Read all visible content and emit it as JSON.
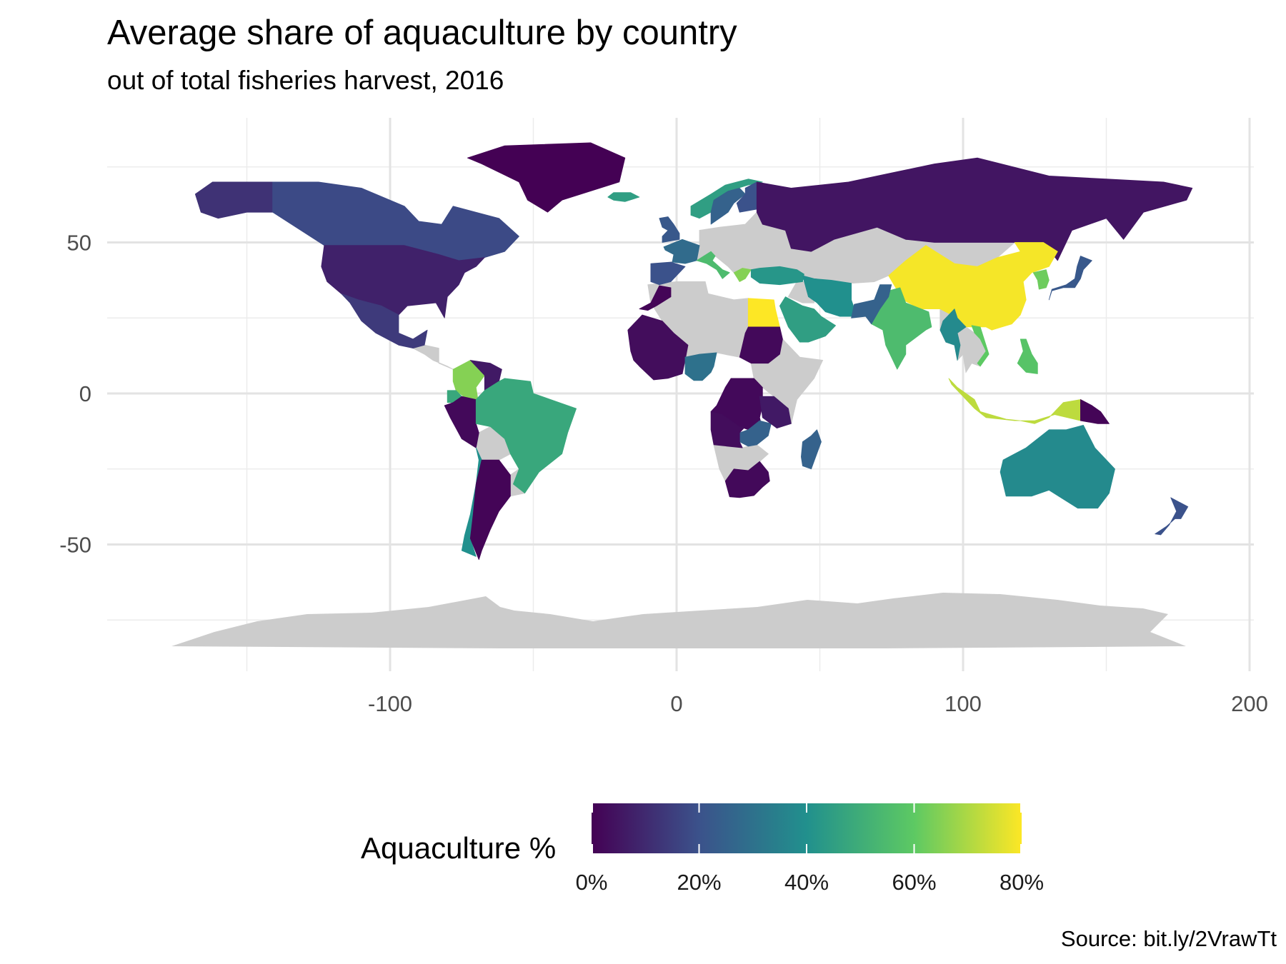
{
  "title": "Average share of aquaculture by country",
  "subtitle": "out of total fisheries harvest, 2016",
  "caption": "Source: bit.ly/2VrawTt",
  "chart_data": {
    "type": "choropleth",
    "x_axis": {
      "ticks": [
        -100,
        0,
        100,
        200
      ],
      "range": [
        -200,
        205
      ],
      "minor_gridlines": [
        -150,
        -50,
        50,
        150
      ]
    },
    "y_axis": {
      "ticks": [
        -50,
        0,
        50
      ],
      "range": [
        -90,
        90
      ],
      "minor_gridlines": [
        -75,
        -25,
        25,
        75
      ]
    },
    "grid": true,
    "missing_color": "#cccccc",
    "legend": {
      "title": "Aquaculture %",
      "placement": "bottom",
      "limits": [
        0,
        80
      ],
      "tick_values": [
        0,
        20,
        40,
        60,
        80
      ],
      "tick_labels": [
        "0%",
        "20%",
        "40%",
        "60%",
        "80%"
      ],
      "colors": [
        "#440154",
        "#3b528b",
        "#21908d",
        "#5dc963",
        "#fde725"
      ]
    },
    "regions": [
      {
        "name": "Greenland",
        "value": 0
      },
      {
        "name": "Alaska",
        "value": 12
      },
      {
        "name": "Canada",
        "value": 18
      },
      {
        "name": "United States",
        "value": 8
      },
      {
        "name": "Mexico",
        "value": 14
      },
      {
        "name": "Colombia",
        "value": 65
      },
      {
        "name": "Venezuela",
        "value": 6
      },
      {
        "name": "Ecuador",
        "value": 48
      },
      {
        "name": "Peru",
        "value": 2
      },
      {
        "name": "Brazil",
        "value": 48
      },
      {
        "name": "Chile",
        "value": 40
      },
      {
        "name": "Argentina",
        "value": 1
      },
      {
        "name": "Iceland",
        "value": 45
      },
      {
        "name": "Norway",
        "value": 45
      },
      {
        "name": "Sweden",
        "value": 25
      },
      {
        "name": "Finland",
        "value": 20
      },
      {
        "name": "United Kingdom",
        "value": 22
      },
      {
        "name": "France",
        "value": 28
      },
      {
        "name": "Spain",
        "value": 20
      },
      {
        "name": "Italy",
        "value": 55
      },
      {
        "name": "Greece",
        "value": 65
      },
      {
        "name": "Turkey",
        "value": 42
      },
      {
        "name": "Russia",
        "value": 5
      },
      {
        "name": "China",
        "value": 79
      },
      {
        "name": "Korea",
        "value": 62
      },
      {
        "name": "Japan",
        "value": 22
      },
      {
        "name": "India",
        "value": 55
      },
      {
        "name": "Iran",
        "value": 40
      },
      {
        "name": "Saudi Arabia",
        "value": 45
      },
      {
        "name": "Pakistan",
        "value": 25
      },
      {
        "name": "Myanmar",
        "value": 38
      },
      {
        "name": "Vietnam",
        "value": 60
      },
      {
        "name": "Indonesia",
        "value": 72
      },
      {
        "name": "Philippines",
        "value": 58
      },
      {
        "name": "Papua New Guinea",
        "value": 1
      },
      {
        "name": "Australia",
        "value": 38
      },
      {
        "name": "New Zealand",
        "value": 20
      },
      {
        "name": "Egypt",
        "value": 80
      },
      {
        "name": "Morocco",
        "value": 1
      },
      {
        "name": "West Africa",
        "value": 3
      },
      {
        "name": "Nigeria",
        "value": 30
      },
      {
        "name": "Sudan",
        "value": 2
      },
      {
        "name": "DR Congo",
        "value": 2
      },
      {
        "name": "Zambia",
        "value": 25
      },
      {
        "name": "Tanzania",
        "value": 6
      },
      {
        "name": "Angola",
        "value": 3
      },
      {
        "name": "South Africa",
        "value": 2
      },
      {
        "name": "Madagascar",
        "value": 25
      }
    ]
  }
}
